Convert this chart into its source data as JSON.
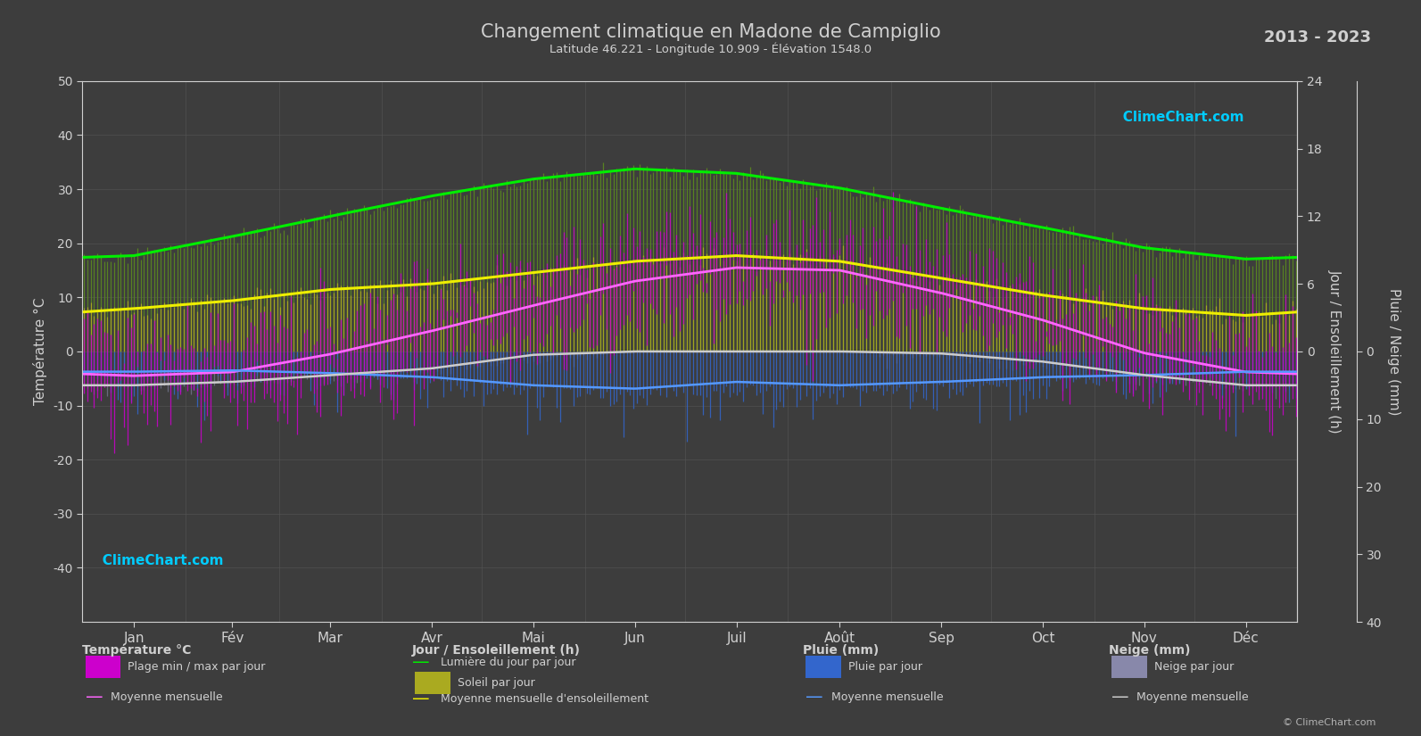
{
  "title": "Changement climatique en Madone de Campiglio",
  "subtitle": "Latitude 46.221 - Longitude 10.909 - Élévation 1548.0",
  "year_range": "2013 - 2023",
  "background_color": "#3d3d3d",
  "text_color": "#d0d0d0",
  "months": [
    "Jan",
    "Fév",
    "Mar",
    "Avr",
    "Mai",
    "Jun",
    "Juil",
    "Août",
    "Sep",
    "Oct",
    "Nov",
    "Déc"
  ],
  "month_days": [
    31,
    28,
    31,
    30,
    31,
    30,
    31,
    31,
    30,
    31,
    30,
    31
  ],
  "temp_ylim": [
    -50,
    50
  ],
  "temp_yticks": [
    -40,
    -30,
    -20,
    -10,
    0,
    10,
    20,
    30,
    40,
    50
  ],
  "sun_ylim": [
    0,
    24
  ],
  "sun_yticks": [
    0,
    6,
    12,
    18,
    24
  ],
  "rain_ylim": [
    40,
    0
  ],
  "rain_yticks": [
    0,
    10,
    20,
    30,
    40
  ],
  "temp_mean": [
    -4.5,
    -3.8,
    -0.5,
    3.8,
    8.5,
    13.0,
    15.5,
    15.0,
    10.8,
    5.8,
    -0.3,
    -3.8
  ],
  "temp_min_mean": [
    -9.5,
    -9.0,
    -7.0,
    -1.5,
    3.5,
    7.5,
    10.0,
    9.5,
    5.5,
    1.0,
    -5.0,
    -8.5
  ],
  "temp_max_mean": [
    0.5,
    1.5,
    5.5,
    9.0,
    14.0,
    18.5,
    21.0,
    20.5,
    16.0,
    10.5,
    4.5,
    1.0
  ],
  "daylight_mean": [
    8.5,
    10.2,
    12.0,
    13.8,
    15.3,
    16.2,
    15.8,
    14.5,
    12.7,
    11.0,
    9.2,
    8.2
  ],
  "sunshine_mean": [
    3.8,
    4.5,
    5.5,
    6.0,
    7.0,
    8.0,
    8.5,
    8.0,
    6.5,
    5.0,
    3.8,
    3.2
  ],
  "rain_mean": [
    3.0,
    2.8,
    3.2,
    3.8,
    5.0,
    5.5,
    4.5,
    5.0,
    4.5,
    3.8,
    3.5,
    3.0
  ],
  "snow_mean": [
    5.0,
    4.5,
    3.5,
    2.5,
    0.5,
    0.0,
    0.0,
    0.0,
    0.3,
    1.5,
    3.5,
    5.0
  ],
  "colors": {
    "bg": "#3d3d3d",
    "grid": "#585858",
    "temp_bar": "#cc00cc",
    "temp_mean_line": "#ff66ff",
    "daylight_bar": "#5a8a20",
    "sunshine_bar": "#aaaa20",
    "sunshine_mean_line": "#eeee00",
    "rain_bar": "#3366cc",
    "snow_bar": "#8888aa",
    "daylight_line": "#00ee00",
    "rain_mean_line": "#5599ff",
    "snow_mean_line": "#cccccc"
  },
  "legend": {
    "temp_section": "Température °C",
    "temp_range": "Plage min / max par jour",
    "temp_mean": "Moyenne mensuelle",
    "sun_section": "Jour / Ensoleillement (h)",
    "daylight": "Lumière du jour par jour",
    "sunshine": "Soleil par jour",
    "sunshine_mean": "Moyenne mensuelle d'ensoleillement",
    "rain_section": "Pluie (mm)",
    "rain_bar": "Pluie par jour",
    "rain_mean": "Moyenne mensuelle",
    "snow_section": "Neige (mm)",
    "snow_bar": "Neige par jour",
    "snow_mean": "Moyenne mensuelle"
  }
}
